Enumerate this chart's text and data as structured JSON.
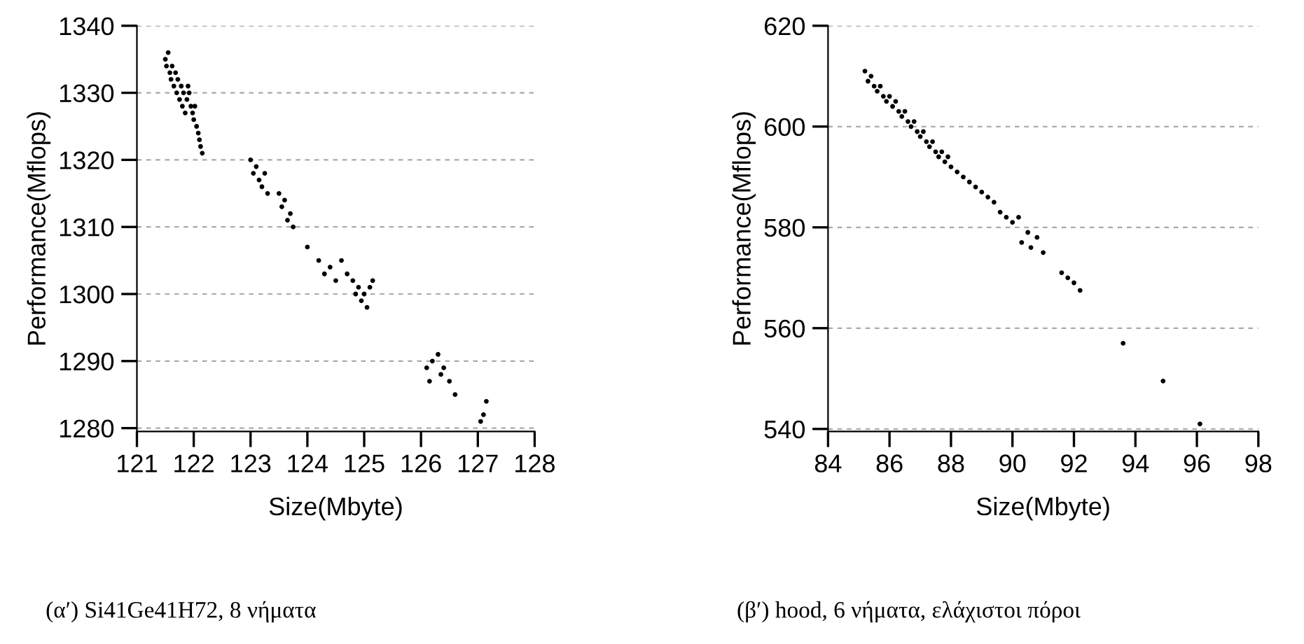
{
  "chart_data": [
    {
      "type": "scatter",
      "xlabel": "Size(Mbyte)",
      "ylabel": "Performance(Mflops)",
      "annotations": [
        "(α′) Si41Ge41H72, 8 νήματα"
      ],
      "xlim": [
        121,
        128
      ],
      "xticks": [
        121,
        122,
        123,
        124,
        125,
        126,
        127,
        128
      ],
      "ylim": [
        1279.5,
        1340
      ],
      "yticks": [
        1280,
        1290,
        1300,
        1310,
        1320,
        1330,
        1340
      ],
      "grid": "y",
      "marker": "circle",
      "color": "#000000",
      "x": [
        121.5,
        121.52,
        121.55,
        121.58,
        121.6,
        121.62,
        121.65,
        121.68,
        121.7,
        121.72,
        121.75,
        121.78,
        121.8,
        121.82,
        121.85,
        121.88,
        121.9,
        121.92,
        121.95,
        121.98,
        122.0,
        122.02,
        122.05,
        122.08,
        122.1,
        122.12,
        122.15,
        123.0,
        123.05,
        123.1,
        123.15,
        123.2,
        123.25,
        123.3,
        123.5,
        123.55,
        123.6,
        123.65,
        123.7,
        123.75,
        124.0,
        124.2,
        124.3,
        124.4,
        124.5,
        124.6,
        124.7,
        124.8,
        124.85,
        124.9,
        124.95,
        125.0,
        125.05,
        125.1,
        125.15,
        126.1,
        126.15,
        126.2,
        126.3,
        126.35,
        126.4,
        126.5,
        126.6,
        127.05,
        127.1,
        127.15
      ],
      "values": [
        1335,
        1334,
        1336,
        1333,
        1332,
        1334,
        1331,
        1333,
        1330,
        1332,
        1329,
        1331,
        1328,
        1330,
        1327,
        1329,
        1331,
        1330,
        1328,
        1327,
        1326,
        1328,
        1325,
        1324,
        1323,
        1322,
        1321,
        1320,
        1318,
        1319,
        1317,
        1316,
        1318,
        1315,
        1315,
        1313,
        1314,
        1311,
        1312,
        1310,
        1307,
        1305,
        1303,
        1304,
        1302,
        1305,
        1303,
        1302,
        1300,
        1301,
        1299,
        1300,
        1298,
        1301,
        1302,
        1289,
        1287,
        1290,
        1291,
        1288,
        1289,
        1287,
        1285,
        1281,
        1282,
        1284
      ]
    },
    {
      "type": "scatter",
      "xlabel": "Size(Mbyte)",
      "ylabel": "Performance(Mflops)",
      "annotations": [
        "(β′) hood, 6 νήματα, ελάχιστοι πόροι"
      ],
      "xlim": [
        84,
        98
      ],
      "xticks": [
        84,
        86,
        88,
        90,
        92,
        94,
        96,
        98
      ],
      "ylim": [
        539.5,
        620
      ],
      "yticks": [
        540,
        560,
        580,
        600,
        620
      ],
      "grid": "y",
      "marker": "circle",
      "color": "#000000",
      "x": [
        85.2,
        85.3,
        85.4,
        85.5,
        85.6,
        85.7,
        85.8,
        85.9,
        86.0,
        86.1,
        86.2,
        86.3,
        86.4,
        86.5,
        86.6,
        86.7,
        86.8,
        86.9,
        87.0,
        87.1,
        87.2,
        87.3,
        87.4,
        87.5,
        87.6,
        87.7,
        87.8,
        87.9,
        88.0,
        88.2,
        88.4,
        88.6,
        88.8,
        89.0,
        89.2,
        89.4,
        89.6,
        89.8,
        90.0,
        90.2,
        90.3,
        90.5,
        90.6,
        90.8,
        91.0,
        91.6,
        91.8,
        92.0,
        92.2,
        93.6,
        94.9,
        96.1
      ],
      "values": [
        611,
        609,
        610,
        608,
        607,
        608,
        606,
        605,
        606,
        604,
        605,
        603,
        602,
        603,
        601,
        600,
        601,
        599,
        598,
        599,
        597,
        596,
        597,
        595,
        594,
        595,
        593,
        594,
        592,
        591,
        590,
        589,
        588,
        587,
        586,
        585,
        583,
        582,
        581,
        582,
        577,
        579,
        576,
        578,
        575,
        571,
        570,
        569,
        567.5,
        557,
        549.5,
        541
      ]
    }
  ]
}
